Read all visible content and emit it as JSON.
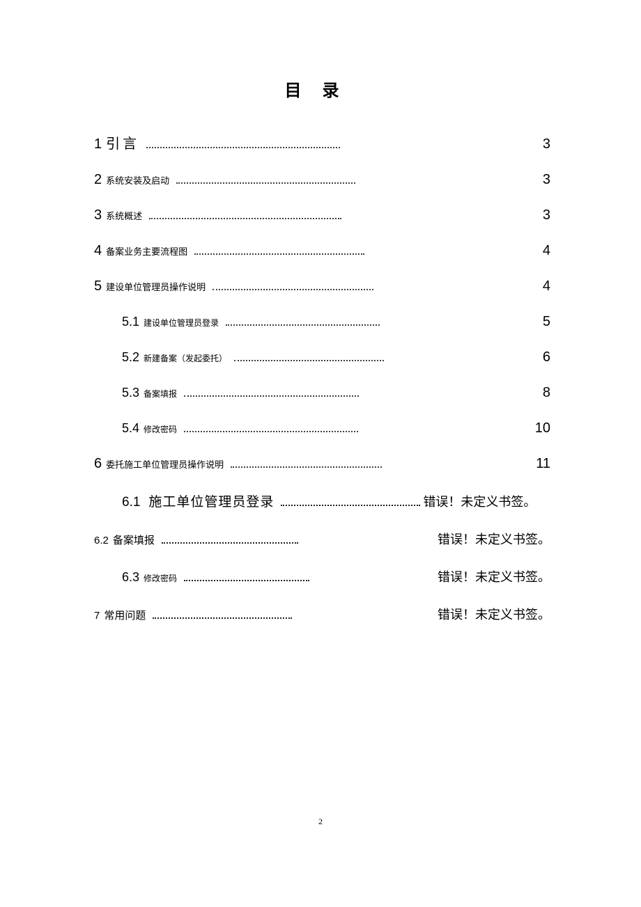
{
  "title": "目录",
  "pageNumber": "2",
  "errorText": "错误！未定义书签。",
  "entries": [
    {
      "num": "1",
      "label": "引言",
      "page": "3",
      "level": 1,
      "labelBig": true
    },
    {
      "num": "2",
      "label": "系统安装及启动",
      "page": "3",
      "level": 1,
      "labelBig": false
    },
    {
      "num": "3",
      "label": "系统概述",
      "page": "3",
      "level": 1,
      "labelBig": false
    },
    {
      "num": "4",
      "label": "备案业务主要流程图",
      "page": "4",
      "level": 1,
      "labelBig": false
    },
    {
      "num": "5",
      "label": "建设单位管理员操作说明",
      "page": "4",
      "level": 1,
      "labelBig": false
    },
    {
      "num": "5.1",
      "label": "建设单位管理员登录",
      "page": "5",
      "level": 2,
      "labelBig": false
    },
    {
      "num": "5.2",
      "label": "新建备案（发起委托）",
      "page": "6",
      "level": 2,
      "labelBig": false
    },
    {
      "num": "5.3",
      "label": "备案填报",
      "page": "8",
      "level": 2,
      "labelBig": false
    },
    {
      "num": "5.4",
      "label": "修改密码",
      "page": "10",
      "level": 2,
      "labelBig": false
    },
    {
      "num": "6",
      "label": "委托施工单位管理员操作说明",
      "page": "11",
      "level": 1,
      "labelBig": false
    }
  ],
  "entry61": {
    "num": "6.1",
    "label": "施工单位管理员登录"
  },
  "entry62": {
    "num": "6.2",
    "label": "备案填报"
  },
  "entry63": {
    "num": "6.3",
    "label": "修改密码"
  },
  "entry7": {
    "num": "7",
    "label": "常用问题"
  },
  "colors": {
    "text": "#000000",
    "bg": "#ffffff",
    "dots": "#404040"
  }
}
